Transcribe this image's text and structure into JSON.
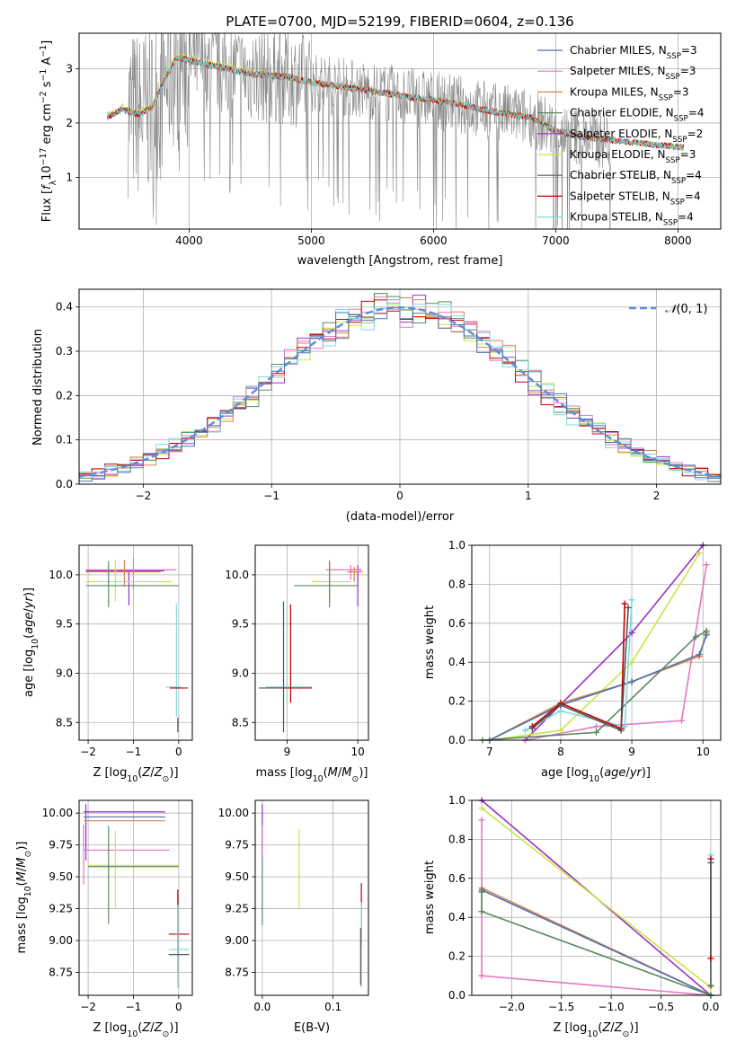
{
  "colors": {
    "Chabrier MILES": "#4c72b0",
    "Salpeter MILES": "#e377c2",
    "Kroupa MILES": "#dd8452",
    "Chabrier ELODIE": "#5a8a60",
    "Salpeter ELODIE": "#9b30c4",
    "Kroupa ELODIE": "#c8e64a",
    "Chabrier STELIB": "#555555",
    "Salpeter STELIB": "#c00000",
    "Kroupa STELIB": "#80d8e0",
    "data": "#888888",
    "gaussian": "#5b8fd6"
  },
  "chart_data": [
    {
      "id": "spectrum",
      "type": "line",
      "title": "PLATE=0700, MJD=52199, FIBERID=0604, z=0.136",
      "xlabel": "wavelength [Angstrom, rest frame]",
      "ylabel": "Flux [f_λ10^−17 erg cm^−2 s^−1 A^−1]",
      "xlim": [
        3100,
        8350
      ],
      "ylim": [
        0.05,
        3.65
      ],
      "xticks": [
        4000,
        5000,
        6000,
        7000,
        8000
      ],
      "yticks": [
        1,
        2,
        3
      ],
      "legend": "top-right",
      "legend_entries": [
        {
          "label": "Chabrier MILES, N",
          "sub": "SSP",
          "suffix": "=3",
          "key": "Chabrier MILES"
        },
        {
          "label": "Salpeter MILES, N",
          "sub": "SSP",
          "suffix": "=3",
          "key": "Salpeter MILES"
        },
        {
          "label": "Kroupa MILES, N",
          "sub": "SSP",
          "suffix": "=3",
          "key": "Kroupa MILES"
        },
        {
          "label": "Chabrier ELODIE, N",
          "sub": "SSP",
          "suffix": "=4",
          "key": "Chabrier ELODIE"
        },
        {
          "label": "Salpeter ELODIE, N",
          "sub": "SSP",
          "suffix": "=2",
          "key": "Salpeter ELODIE"
        },
        {
          "label": "Kroupa ELODIE, N",
          "sub": "SSP",
          "suffix": "=3",
          "key": "Kroupa ELODIE"
        },
        {
          "label": "Chabrier STELIB, N",
          "sub": "SSP",
          "suffix": "=4",
          "key": "Chabrier STELIB"
        },
        {
          "label": "Salpeter STELIB, N",
          "sub": "SSP",
          "suffix": "=4",
          "key": "Salpeter STELIB"
        },
        {
          "label": "Kroupa STELIB, N",
          "sub": "SSP",
          "suffix": "=4",
          "key": "Kroupa STELIB"
        }
      ],
      "continuum": {
        "x": [
          3330,
          3450,
          3600,
          3700,
          3800,
          3900,
          4000,
          4200,
          4500,
          4800,
          5000,
          5300,
          5600,
          5900,
          6200,
          6500,
          6800,
          7000,
          7200,
          7400,
          7600,
          7800,
          8050
        ],
        "y": [
          2.1,
          2.25,
          2.15,
          2.3,
          2.8,
          3.2,
          3.15,
          3.05,
          2.9,
          2.85,
          2.75,
          2.65,
          2.55,
          2.45,
          2.35,
          2.2,
          2.1,
          1.85,
          1.75,
          1.7,
          1.65,
          1.6,
          1.55
        ]
      },
      "noise_range": [
        3500,
        7450
      ]
    },
    {
      "id": "residuals",
      "type": "step",
      "xlabel": "(data-model)/error",
      "ylabel": "Normed distribution",
      "xlim": [
        -2.5,
        2.5
      ],
      "ylim": [
        0,
        0.44
      ],
      "xticks": [
        -2,
        -1,
        0,
        1,
        2
      ],
      "yticks": [
        0.0,
        0.1,
        0.2,
        0.3,
        0.4
      ],
      "legend": "top-right",
      "legend_label": "N(0, 1)",
      "bin_width": 0.1,
      "bin_start": -2.5
    },
    {
      "id": "age_vs_Z",
      "type": "errorbar",
      "xlabel": "Z [log10(Z/Z⊙)]",
      "ylabel": "age [log10(age/yr)]",
      "xlim": [
        -2.2,
        0.3
      ],
      "ylim": [
        8.32,
        10.3
      ],
      "xticks": [
        -2,
        -1,
        0
      ],
      "yticks": [
        8.5,
        9.0,
        9.5,
        10.0
      ],
      "points": [
        {
          "key": "Salpeter ELODIE",
          "x": -1.1,
          "xerr": [
            0.95,
            0.78
          ],
          "y": 10.04,
          "yerr": [
            0.35,
            0.0
          ]
        },
        {
          "key": "Salpeter MILES",
          "x": -1.0,
          "xerr": [
            1.05,
            0.95
          ],
          "y": 10.05,
          "yerr": [
            0.2,
            0.12
          ]
        },
        {
          "key": "Kroupa MILES",
          "x": -1.2,
          "xerr": [
            0.85,
            0.8
          ],
          "y": 10.03,
          "yerr": [
            0.15,
            0.12
          ]
        },
        {
          "key": "Kroupa ELODIE",
          "x": -1.4,
          "xerr": [
            0.65,
            1.25
          ],
          "y": 9.93,
          "yerr": [
            0.2,
            0.22
          ]
        },
        {
          "key": "Chabrier ELODIE",
          "x": -1.55,
          "xerr": [
            0.5,
            1.55
          ],
          "y": 9.89,
          "yerr": [
            0.22,
            0.25
          ]
        },
        {
          "key": "Kroupa STELIB",
          "x": -0.05,
          "xerr": [
            0.25,
            0.1
          ],
          "y": 8.86,
          "yerr": [
            0.3,
            0.85
          ]
        },
        {
          "key": "Salpeter STELIB",
          "x": 0.0,
          "xerr": [
            0.2,
            0.2
          ],
          "y": 8.85,
          "yerr": [
            0.0,
            0.0
          ]
        },
        {
          "key": "Chabrier STELIB",
          "x": -0.02,
          "xerr": [
            0.0,
            0.0
          ],
          "y": 8.55,
          "yerr": [
            0.15,
            0.0
          ]
        }
      ]
    },
    {
      "id": "age_vs_mass",
      "type": "errorbar",
      "xlabel": "mass [log10(M/M⊙)]",
      "ylabel": "",
      "xlim": [
        8.55,
        10.15
      ],
      "ylim": [
        8.32,
        10.3
      ],
      "xticks": [
        9,
        10
      ],
      "yticks": [
        8.5,
        9.0,
        9.5,
        10.0
      ],
      "points": [
        {
          "key": "Salpeter ELODIE",
          "x": 10.0,
          "xerr": [
            0.05,
            0.05
          ],
          "y": 10.05,
          "yerr": [
            0.37,
            0.05
          ]
        },
        {
          "key": "Salpeter MILES",
          "x": 9.9,
          "xerr": [
            0.35,
            0.12
          ],
          "y": 10.05,
          "yerr": [
            0.1,
            0.05
          ]
        },
        {
          "key": "Kroupa MILES",
          "x": 9.95,
          "xerr": [
            0.1,
            0.12
          ],
          "y": 10.03,
          "yerr": [
            0.1,
            0.05
          ]
        },
        {
          "key": "Kroupa ELODIE",
          "x": 9.6,
          "xerr": [
            0.25,
            0.3
          ],
          "y": 9.93,
          "yerr": [
            0.2,
            0.22
          ]
        },
        {
          "key": "Chabrier ELODIE",
          "x": 9.6,
          "xerr": [
            0.5,
            0.4
          ],
          "y": 9.89,
          "yerr": [
            0.22,
            0.25
          ]
        },
        {
          "key": "Kroupa STELIB",
          "x": 9.0,
          "xerr": [
            0.3,
            0.35
          ],
          "y": 8.86,
          "yerr": [
            0.15,
            0.85
          ]
        },
        {
          "key": "Salpeter STELIB",
          "x": 9.05,
          "xerr": [
            0.35,
            0.3
          ],
          "y": 8.85,
          "yerr": [
            0.15,
            0.85
          ]
        },
        {
          "key": "Chabrier STELIB",
          "x": 8.95,
          "xerr": [
            0.35,
            0.0
          ],
          "y": 8.85,
          "yerr": [
            0.45,
            0.88
          ]
        }
      ]
    },
    {
      "id": "weight_vs_age",
      "type": "line",
      "xlabel": "age [log10(age/yr)]",
      "ylabel": "mass weight",
      "xlim": [
        6.75,
        10.25
      ],
      "ylim": [
        0,
        1
      ],
      "xticks": [
        7,
        8,
        9,
        10
      ],
      "yticks": [
        0.0,
        0.2,
        0.4,
        0.6,
        0.8,
        1.0
      ],
      "series": [
        {
          "key": "Salpeter ELODIE",
          "x": [
            7.5,
            9.0,
            10.0
          ],
          "y": [
            0.0,
            0.55,
            1.0
          ]
        },
        {
          "key": "Kroupa ELODIE",
          "x": [
            7.0,
            8.0,
            9.0,
            9.95
          ],
          "y": [
            0.0,
            0.05,
            0.4,
            0.96
          ]
        },
        {
          "key": "Salpeter MILES",
          "x": [
            7.5,
            8.5,
            9.7,
            10.05
          ],
          "y": [
            0.0,
            0.07,
            0.1,
            0.9
          ]
        },
        {
          "key": "Kroupa MILES",
          "x": [
            7.0,
            8.0,
            9.0,
            9.95,
            10.05
          ],
          "y": [
            0.0,
            0.19,
            0.3,
            0.43,
            0.55
          ]
        },
        {
          "key": "Chabrier MILES",
          "x": [
            7.0,
            8.0,
            9.0,
            9.95,
            10.05
          ],
          "y": [
            0.0,
            0.18,
            0.3,
            0.44,
            0.54
          ]
        },
        {
          "key": "Chabrier ELODIE",
          "x": [
            6.9,
            8.5,
            9.9,
            10.05
          ],
          "y": [
            0.0,
            0.04,
            0.53,
            0.56
          ]
        },
        {
          "key": "Kroupa STELIB",
          "x": [
            7.5,
            8.0,
            8.9,
            9.0
          ],
          "y": [
            0.05,
            0.15,
            0.07,
            0.72
          ]
        },
        {
          "key": "Salpeter STELIB",
          "x": [
            7.6,
            8.0,
            8.85,
            8.9
          ],
          "y": [
            0.07,
            0.19,
            0.06,
            0.7
          ]
        },
        {
          "key": "Chabrier STELIB",
          "x": [
            7.6,
            8.0,
            8.85,
            8.95
          ],
          "y": [
            0.06,
            0.18,
            0.05,
            0.68
          ]
        }
      ]
    },
    {
      "id": "mass_vs_Z",
      "type": "errorbar",
      "xlabel": "Z [log10(Z/Z⊙)]",
      "ylabel": "mass [log10(M/M⊙)]",
      "xlim": [
        -2.2,
        0.3
      ],
      "ylim": [
        8.57,
        10.1
      ],
      "xticks": [
        -2,
        -1,
        0
      ],
      "yticks": [
        8.75,
        9.0,
        9.25,
        9.5,
        9.75,
        10.0
      ],
      "points": [
        {
          "key": "Salpeter ELODIE",
          "x": -2.05,
          "xerr": [
            0.05,
            1.75
          ],
          "y": 10.01,
          "yerr": [
            0.38,
            0.06
          ]
        },
        {
          "key": "Salpeter MILES",
          "x": -2.1,
          "xerr": [
            0.0,
            1.9
          ],
          "y": 9.71,
          "yerr": [
            0.27,
            0.2
          ]
        },
        {
          "key": "Kroupa MILES",
          "x": -2.1,
          "xerr": [
            0.0,
            1.8
          ],
          "y": 9.94,
          "yerr": [
            0.0,
            0.0
          ]
        },
        {
          "key": "Chabrier MILES",
          "x": -2.1,
          "xerr": [
            0.0,
            1.8
          ],
          "y": 9.97,
          "yerr": [
            0.0,
            0.0
          ]
        },
        {
          "key": "Kroupa ELODIE",
          "x": -1.4,
          "xerr": [
            0.6,
            1.4
          ],
          "y": 9.59,
          "yerr": [
            0.33,
            0.27
          ]
        },
        {
          "key": "Chabrier ELODIE",
          "x": -1.55,
          "xerr": [
            0.45,
            1.55
          ],
          "y": 9.58,
          "yerr": [
            0.45,
            0.32
          ]
        },
        {
          "key": "Salpeter STELIB",
          "x": -0.02,
          "xerr": [
            0.2,
            0.25
          ],
          "y": 9.05,
          "yerr": [
            0.3,
            0.35
          ]
        },
        {
          "key": "Kroupa STELIB",
          "x": -0.02,
          "xerr": [
            0.2,
            0.25
          ],
          "y": 8.93,
          "yerr": [
            0.3,
            0.35
          ]
        },
        {
          "key": "Chabrier STELIB",
          "x": -0.02,
          "xerr": [
            0.2,
            0.25
          ],
          "y": 8.89,
          "yerr": [
            0.0,
            0.0
          ]
        }
      ]
    },
    {
      "id": "mass_vs_EBV",
      "type": "errorbar",
      "xlabel": "E(B-V)",
      "ylabel": "",
      "xlim": [
        -0.01,
        0.15
      ],
      "ylim": [
        8.57,
        10.1
      ],
      "xticks": [
        0.0,
        0.1
      ],
      "yticks": [
        8.75,
        9.0,
        9.25,
        9.5,
        9.75,
        10.0
      ],
      "points": [
        {
          "key": "Salpeter ELODIE",
          "x": 0.0,
          "y": 9.85,
          "yerr": [
            0.2,
            0.22
          ]
        },
        {
          "key": "Chabrier ELODIE",
          "x": 0.0,
          "y": 9.5,
          "yerr": [
            0.38,
            0.3
          ]
        },
        {
          "key": "Salpeter MILES",
          "x": 0.0,
          "y": 9.8,
          "yerr": [
            0.15,
            0.1
          ]
        },
        {
          "key": "Kroupa ELODIE",
          "x": 0.052,
          "y": 9.6,
          "yerr": [
            0.35,
            0.27
          ]
        },
        {
          "key": "Salpeter STELIB",
          "x": 0.14,
          "y": 9.2,
          "yerr": [
            0.25,
            0.25
          ]
        },
        {
          "key": "Kroupa STELIB",
          "x": 0.14,
          "y": 8.95,
          "yerr": [
            0.32,
            0.35
          ]
        },
        {
          "key": "Chabrier STELIB",
          "x": 0.139,
          "y": 8.9,
          "yerr": [
            0.25,
            0.2
          ]
        }
      ]
    },
    {
      "id": "weight_vs_Z",
      "type": "line",
      "xlabel": "Z [log10(Z/Z⊙)]",
      "ylabel": "mass weight",
      "xlim": [
        -2.4,
        0.1
      ],
      "ylim": [
        0,
        1
      ],
      "xticks": [
        -2.0,
        -1.5,
        -1.0,
        -0.5,
        0.0
      ],
      "yticks": [
        0.0,
        0.2,
        0.4,
        0.6,
        0.8,
        1.0
      ],
      "series": [
        {
          "key": "Salpeter ELODIE",
          "x": [
            -2.3,
            0.0
          ],
          "y": [
            1.0,
            0.0
          ]
        },
        {
          "key": "Kroupa ELODIE",
          "x": [
            -2.3,
            0.0
          ],
          "y": [
            0.96,
            0.04
          ]
        },
        {
          "key": "Salpeter MILES",
          "x": [
            -2.3,
            -2.3,
            -2.3,
            0.0
          ],
          "y": [
            0.9,
            0.1,
            0.1,
            0.0
          ]
        },
        {
          "key": "Kroupa MILES",
          "x": [
            -2.3,
            0.0
          ],
          "y": [
            0.55,
            0.0
          ]
        },
        {
          "key": "Chabrier MILES",
          "x": [
            -2.3,
            0.0
          ],
          "y": [
            0.54,
            0.0
          ]
        },
        {
          "key": "Chabrier ELODIE",
          "x": [
            -2.3,
            -2.3,
            0.0
          ],
          "y": [
            0.53,
            0.43,
            0.0
          ]
        },
        {
          "key": "Kroupa STELIB",
          "x": [
            0.0,
            0.0
          ],
          "y": [
            0.72,
            0.05
          ]
        },
        {
          "key": "Salpeter STELIB",
          "x": [
            0.0,
            0.0
          ],
          "y": [
            0.7,
            0.19
          ]
        },
        {
          "key": "Chabrier STELIB",
          "x": [
            0.0,
            0.0
          ],
          "y": [
            0.68,
            0.05
          ]
        }
      ]
    }
  ]
}
